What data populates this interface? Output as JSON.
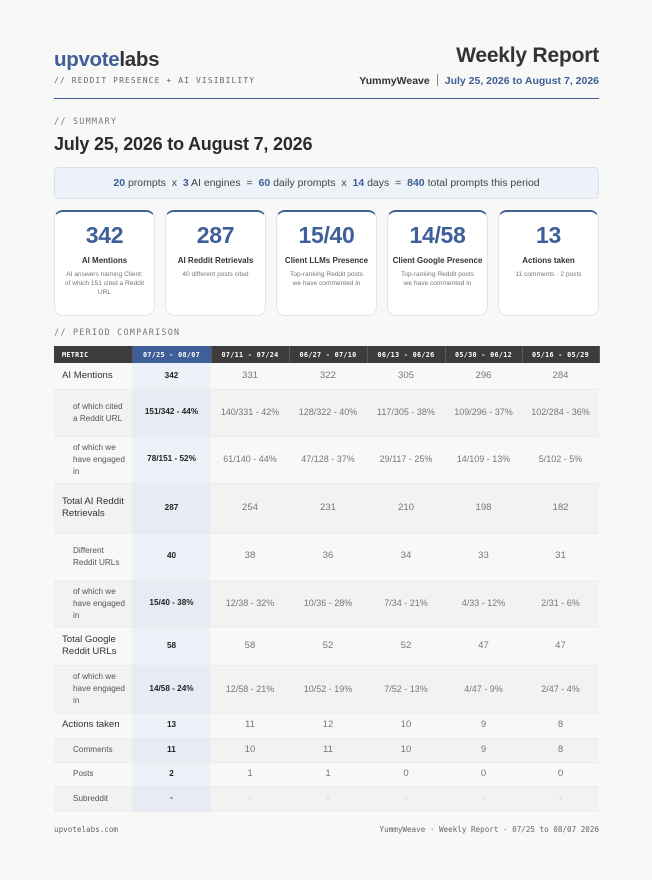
{
  "brand": {
    "logo_part1": "upvote",
    "logo_part2": "labs",
    "tagline": "// REDDIT PRESENCE + AI VISIBILITY"
  },
  "report": {
    "title": "Weekly Report",
    "client": "YummyWeave",
    "range": "July 25, 2026 to August 7, 2026"
  },
  "summary": {
    "label": "// SUMMARY",
    "heading": "July 25, 2026 to August 7, 2026",
    "formula": {
      "prompts": "20",
      "prompts_label": "prompts",
      "x1": "x",
      "engines": "3",
      "engines_label": "AI engines",
      "eq1": "=",
      "daily": "60",
      "daily_label": "daily prompts",
      "x2": "x",
      "days": "14",
      "days_label": "days",
      "eq2": "=",
      "total": "840",
      "total_label": "total prompts this period"
    }
  },
  "cards": [
    {
      "value": "342",
      "label": "AI Mentions",
      "sub": "AI answers naming Client; of which 151 cited a Reddit URL"
    },
    {
      "value": "287",
      "label": "AI Reddit Retrievals",
      "sub": "40 different posts cited"
    },
    {
      "value": "15/40",
      "label": "Client LLMs Presence",
      "sub": "Top-ranking Reddit posts we have commented in"
    },
    {
      "value": "14/58",
      "label": "Client Google Presence",
      "sub": "Top-ranking Reddit posts we have commented in"
    },
    {
      "value": "13",
      "label": "Actions taken",
      "sub": "11 comments · 2 posts"
    }
  ],
  "comparison": {
    "label": "// PERIOD COMPARISON",
    "headers": [
      "METRIC",
      "07/25 - 08/07",
      "07/11 - 07/24",
      "06/27 - 07/10",
      "06/13 - 06/26",
      "05/30 - 06/12",
      "05/16 - 05/29"
    ],
    "rows": [
      {
        "metric": "AI Mentions",
        "values": [
          "342",
          "331",
          "322",
          "305",
          "296",
          "284"
        ]
      },
      {
        "metric": "of which cited a Reddit URL",
        "values": [
          "151/342 - 44%",
          "140/331 - 42%",
          "128/322 - 40%",
          "117/305 - 38%",
          "109/296 - 37%",
          "102/284 - 36%"
        ]
      },
      {
        "metric": "of which we have engaged in",
        "values": [
          "78/151 - 52%",
          "61/140 - 44%",
          "47/128 - 37%",
          "29/117 - 25%",
          "14/109 - 13%",
          "5/102 - 5%"
        ]
      },
      {
        "metric": "Total AI Reddit Retrievals",
        "values": [
          "287",
          "254",
          "231",
          "210",
          "198",
          "182"
        ]
      },
      {
        "metric": "Different Reddit URLs",
        "values": [
          "40",
          "38",
          "36",
          "34",
          "33",
          "31"
        ]
      },
      {
        "metric": "of which we have engaged in",
        "values": [
          "15/40 - 38%",
          "12/38 - 32%",
          "10/36 - 28%",
          "7/34 - 21%",
          "4/33 - 12%",
          "2/31 - 6%"
        ]
      },
      {
        "metric": "Total Google Reddit URLs",
        "values": [
          "58",
          "58",
          "52",
          "52",
          "47",
          "47"
        ]
      },
      {
        "metric": "of which we have engaged in",
        "values": [
          "14/58 - 24%",
          "12/58 - 21%",
          "10/52 - 19%",
          "7/52 - 13%",
          "4/47 - 9%",
          "2/47 - 4%"
        ]
      },
      {
        "metric": "Actions taken",
        "values": [
          "13",
          "11",
          "12",
          "10",
          "9",
          "8"
        ]
      },
      {
        "metric": "Comments",
        "values": [
          "11",
          "10",
          "11",
          "10",
          "9",
          "8"
        ]
      },
      {
        "metric": "Posts",
        "values": [
          "2",
          "1",
          "1",
          "0",
          "0",
          "0"
        ]
      },
      {
        "metric": "Subreddit",
        "values": [
          "-",
          "-",
          "-",
          "-",
          "-",
          "-"
        ]
      }
    ]
  },
  "footer": {
    "left": "upvotelabs.com",
    "right": "YummyWeave · Weekly Report · 07/25 to 08/07 2026"
  }
}
